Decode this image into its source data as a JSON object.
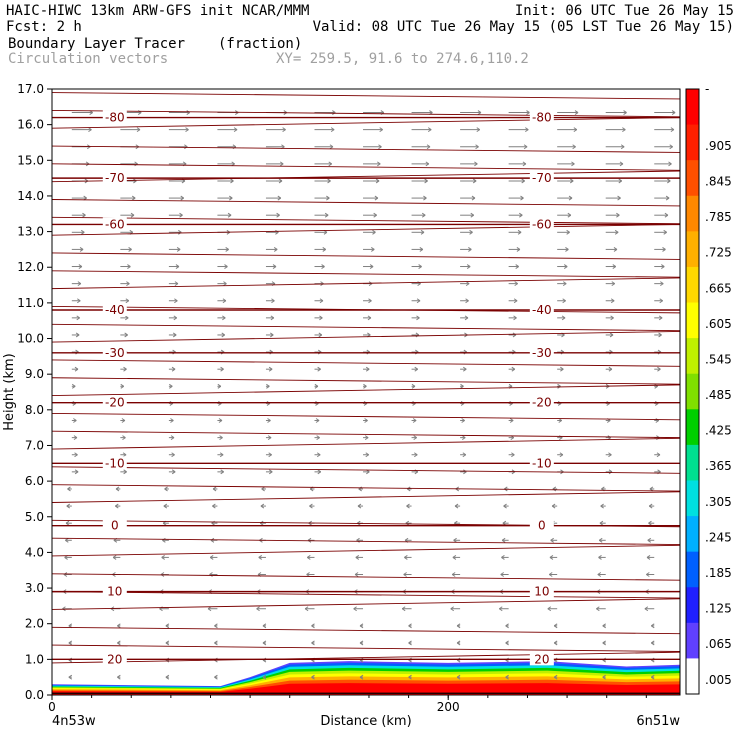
{
  "header": {
    "line1_left": "HAIC-HIWC 13km ARW-GFS init   NCAR/MMM",
    "line1_right": "Init: 06 UTC Tue 26 May 15",
    "line2_left": "Fcst:    2 h",
    "line2_right": "Valid: 08 UTC Tue 26 May 15 (05 LST Tue 26 May 15)",
    "line3_left": "Boundary Layer Tracer",
    "line3_mid": "(fraction)",
    "line4_left": "Circulation vectors",
    "line4_mid": "XY= 259.5, 91.6 to 274.6,110.2"
  },
  "colors": {
    "contour": "#7a0000",
    "vector": "#808080",
    "shading": [
      "#ffffff",
      "#6040ff",
      "#2020ff",
      "#0060ff",
      "#00b0ff",
      "#00e0e0",
      "#00e090",
      "#00d000",
      "#80e000",
      "#c0f000",
      "#ffff00",
      "#ffd800",
      "#ffb000",
      "#ff8800",
      "#ff5000",
      "#ff2000",
      "#ff0000"
    ]
  },
  "chart_data": {
    "type": "contour-cross-section",
    "ylabel": "Height (km)",
    "xlabel": "Distance (km)",
    "ylim": [
      0.0,
      17.0
    ],
    "xlim": [
      0,
      317
    ],
    "yticks": [
      "0.0",
      "1.0",
      "2.0",
      "3.0",
      "4.0",
      "5.0",
      "6.0",
      "7.0",
      "8.0",
      "9.0",
      "10.0",
      "11.0",
      "12.0",
      "13.0",
      "14.0",
      "15.0",
      "16.0",
      "17.0"
    ],
    "xticks": [
      {
        "value": 0,
        "label": "0"
      },
      {
        "value": 200,
        "label": "200"
      }
    ],
    "x_endpoints": {
      "left": "4n53w",
      "right": "6n51w"
    },
    "colorbar": {
      "labels": [
        "-",
        ".905",
        ".845",
        ".785",
        ".725",
        ".665",
        ".605",
        ".545",
        ".485",
        ".425",
        ".365",
        ".305",
        ".245",
        ".185",
        ".125",
        ".065",
        ".005"
      ]
    },
    "temperature_contours": [
      {
        "label": "-80",
        "height": 16.2
      },
      {
        "label": "-70",
        "height": 14.5
      },
      {
        "label": "-60",
        "height": 13.2
      },
      {
        "label": "-40",
        "height": 10.8
      },
      {
        "label": "-30",
        "height": 9.6
      },
      {
        "label": "-20",
        "height": 8.2
      },
      {
        "label": "-10",
        "height": 6.5
      },
      {
        "label": "0",
        "height": 4.75
      },
      {
        "label": "10",
        "height": 2.9
      },
      {
        "label": "20",
        "height": 1.0
      }
    ],
    "boundary_layer_top_km": [
      {
        "x": 0,
        "z": 0.3
      },
      {
        "x": 85,
        "z": 0.25
      },
      {
        "x": 100,
        "z": 0.5
      },
      {
        "x": 120,
        "z": 0.9
      },
      {
        "x": 150,
        "z": 0.95
      },
      {
        "x": 200,
        "z": 0.9
      },
      {
        "x": 250,
        "z": 0.95
      },
      {
        "x": 290,
        "z": 0.8
      },
      {
        "x": 317,
        "z": 0.85
      }
    ]
  }
}
